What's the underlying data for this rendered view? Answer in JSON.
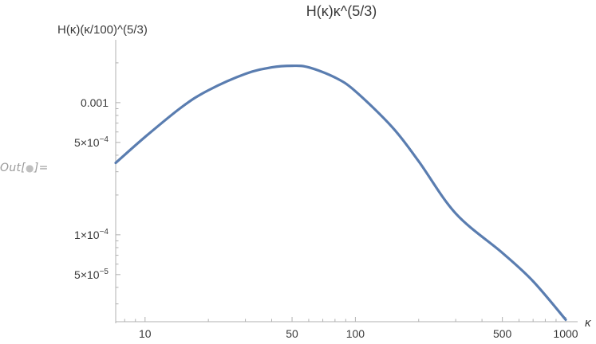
{
  "cell_label": "Out[",
  "cell_label_end": "]=",
  "chart_data": {
    "type": "line",
    "title": "H(κ)κ^(5/3)",
    "xlabel": "κ",
    "ylabel": "H(κ)(κ/100)^(5/3)",
    "xscale": "log",
    "yscale": "log",
    "xlim": [
      7.25,
      1000
    ],
    "ylim": [
      2.2e-05,
      0.0026
    ],
    "x_ticks": [
      {
        "value": 10,
        "label": "10"
      },
      {
        "value": 50,
        "label": "50"
      },
      {
        "value": 100,
        "label": "100"
      },
      {
        "value": 500,
        "label": "500"
      },
      {
        "value": 1000,
        "label": "1000"
      }
    ],
    "y_ticks": [
      {
        "value": 0.001,
        "mantissa": "0.001",
        "exp": ""
      },
      {
        "value": 0.0005,
        "mantissa": "5×10",
        "exp": "−4"
      },
      {
        "value": 0.0001,
        "mantissa": "1×10",
        "exp": "−4"
      },
      {
        "value": 5e-05,
        "mantissa": "5×10",
        "exp": "−5"
      }
    ],
    "series": [
      {
        "color": "#5a7db0",
        "x": [
          7.25,
          10,
          15,
          20,
          30,
          40,
          50,
          60,
          80,
          100,
          150,
          200,
          300,
          500,
          700,
          1000
        ],
        "y": [
          0.00035,
          0.00055,
          0.00093,
          0.00124,
          0.00165,
          0.00185,
          0.0019,
          0.00185,
          0.00155,
          0.00122,
          0.00065,
          0.00036,
          0.000145,
          7.3e-05,
          4.45e-05,
          2.28e-05
        ]
      }
    ]
  }
}
